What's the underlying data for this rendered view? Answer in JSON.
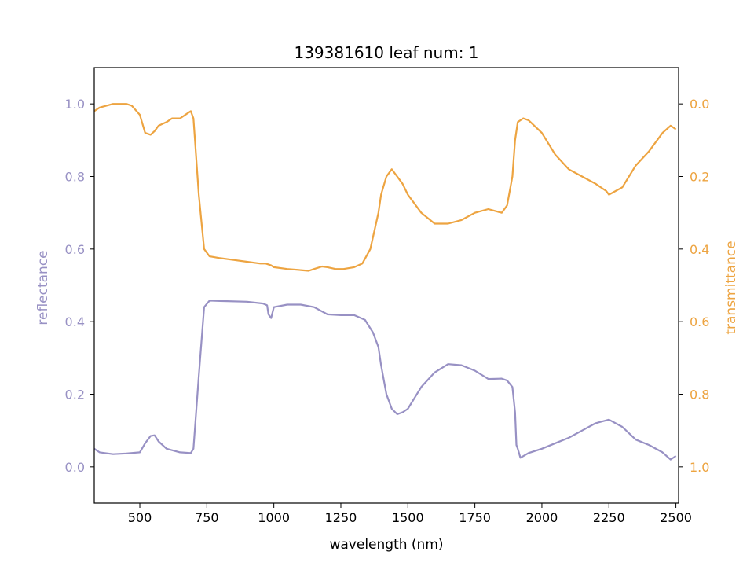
{
  "chart_data": {
    "type": "line",
    "title": "139381610 leaf num: 1",
    "xlabel": "wavelength (nm)",
    "ylabel_left": "reflectance",
    "ylabel_right": "transmittance",
    "xlim": [
      330,
      2510
    ],
    "ylim_left": [
      -0.1,
      1.1
    ],
    "ylim_right_inverted": [
      1.1,
      -0.1
    ],
    "x_ticks": [
      "500",
      "750",
      "1000",
      "1250",
      "1500",
      "1750",
      "2000",
      "2250",
      "2500"
    ],
    "left_ticks": [
      "0.0",
      "0.2",
      "0.4",
      "0.6",
      "0.8",
      "1.0"
    ],
    "right_ticks": [
      "0.0",
      "0.2",
      "0.4",
      "0.6",
      "0.8",
      "1.0"
    ],
    "grid": false,
    "colors": {
      "reflectance": "#9891c4",
      "transmittance": "#eda441"
    },
    "series": [
      {
        "axis": "left",
        "x": [
          330,
          350,
          400,
          450,
          500,
          520,
          540,
          555,
          570,
          600,
          650,
          690,
          700,
          720,
          740,
          760,
          800,
          900,
          960,
          975,
          980,
          990,
          1000,
          1050,
          1100,
          1150,
          1200,
          1250,
          1300,
          1340,
          1370,
          1390,
          1400,
          1420,
          1440,
          1460,
          1480,
          1500,
          1550,
          1600,
          1650,
          1700,
          1750,
          1800,
          1850,
          1870,
          1890,
          1900,
          1905,
          1910,
          1920,
          1950,
          2000,
          2050,
          2100,
          2150,
          2200,
          2250,
          2300,
          2350,
          2400,
          2450,
          2480,
          2500
        ],
        "values": [
          0.05,
          0.04,
          0.035,
          0.037,
          0.04,
          0.065,
          0.085,
          0.087,
          0.07,
          0.05,
          0.04,
          0.038,
          0.05,
          0.25,
          0.44,
          0.458,
          0.457,
          0.455,
          0.45,
          0.445,
          0.42,
          0.41,
          0.44,
          0.447,
          0.447,
          0.44,
          0.42,
          0.418,
          0.418,
          0.405,
          0.37,
          0.33,
          0.28,
          0.2,
          0.16,
          0.145,
          0.15,
          0.16,
          0.22,
          0.26,
          0.283,
          0.28,
          0.265,
          0.242,
          0.243,
          0.238,
          0.22,
          0.15,
          0.06,
          0.05,
          0.025,
          0.038,
          0.05,
          0.065,
          0.08,
          0.1,
          0.12,
          0.13,
          0.11,
          0.075,
          0.06,
          0.04,
          0.02,
          0.03
        ]
      },
      {
        "axis": "right",
        "x": [
          330,
          350,
          400,
          450,
          470,
          500,
          520,
          540,
          555,
          570,
          600,
          620,
          650,
          680,
          690,
          700,
          720,
          740,
          760,
          800,
          850,
          900,
          950,
          970,
          990,
          1000,
          1050,
          1100,
          1130,
          1150,
          1180,
          1200,
          1230,
          1260,
          1300,
          1330,
          1360,
          1390,
          1400,
          1420,
          1440,
          1460,
          1480,
          1500,
          1550,
          1600,
          1650,
          1700,
          1750,
          1800,
          1850,
          1870,
          1890,
          1900,
          1910,
          1930,
          1950,
          2000,
          2050,
          2100,
          2150,
          2200,
          2240,
          2250,
          2300,
          2350,
          2400,
          2450,
          2480,
          2500
        ],
        "values": [
          0.02,
          0.01,
          0.0,
          0.0,
          0.005,
          0.03,
          0.08,
          0.085,
          0.075,
          0.06,
          0.05,
          0.04,
          0.04,
          0.025,
          0.02,
          0.04,
          0.25,
          0.4,
          0.42,
          0.425,
          0.43,
          0.435,
          0.44,
          0.44,
          0.445,
          0.45,
          0.455,
          0.458,
          0.46,
          0.455,
          0.448,
          0.45,
          0.455,
          0.455,
          0.45,
          0.44,
          0.4,
          0.3,
          0.25,
          0.2,
          0.18,
          0.2,
          0.22,
          0.25,
          0.3,
          0.33,
          0.33,
          0.32,
          0.3,
          0.29,
          0.3,
          0.28,
          0.2,
          0.1,
          0.05,
          0.04,
          0.045,
          0.08,
          0.14,
          0.18,
          0.2,
          0.22,
          0.24,
          0.25,
          0.23,
          0.17,
          0.13,
          0.08,
          0.06,
          0.07
        ]
      }
    ]
  }
}
